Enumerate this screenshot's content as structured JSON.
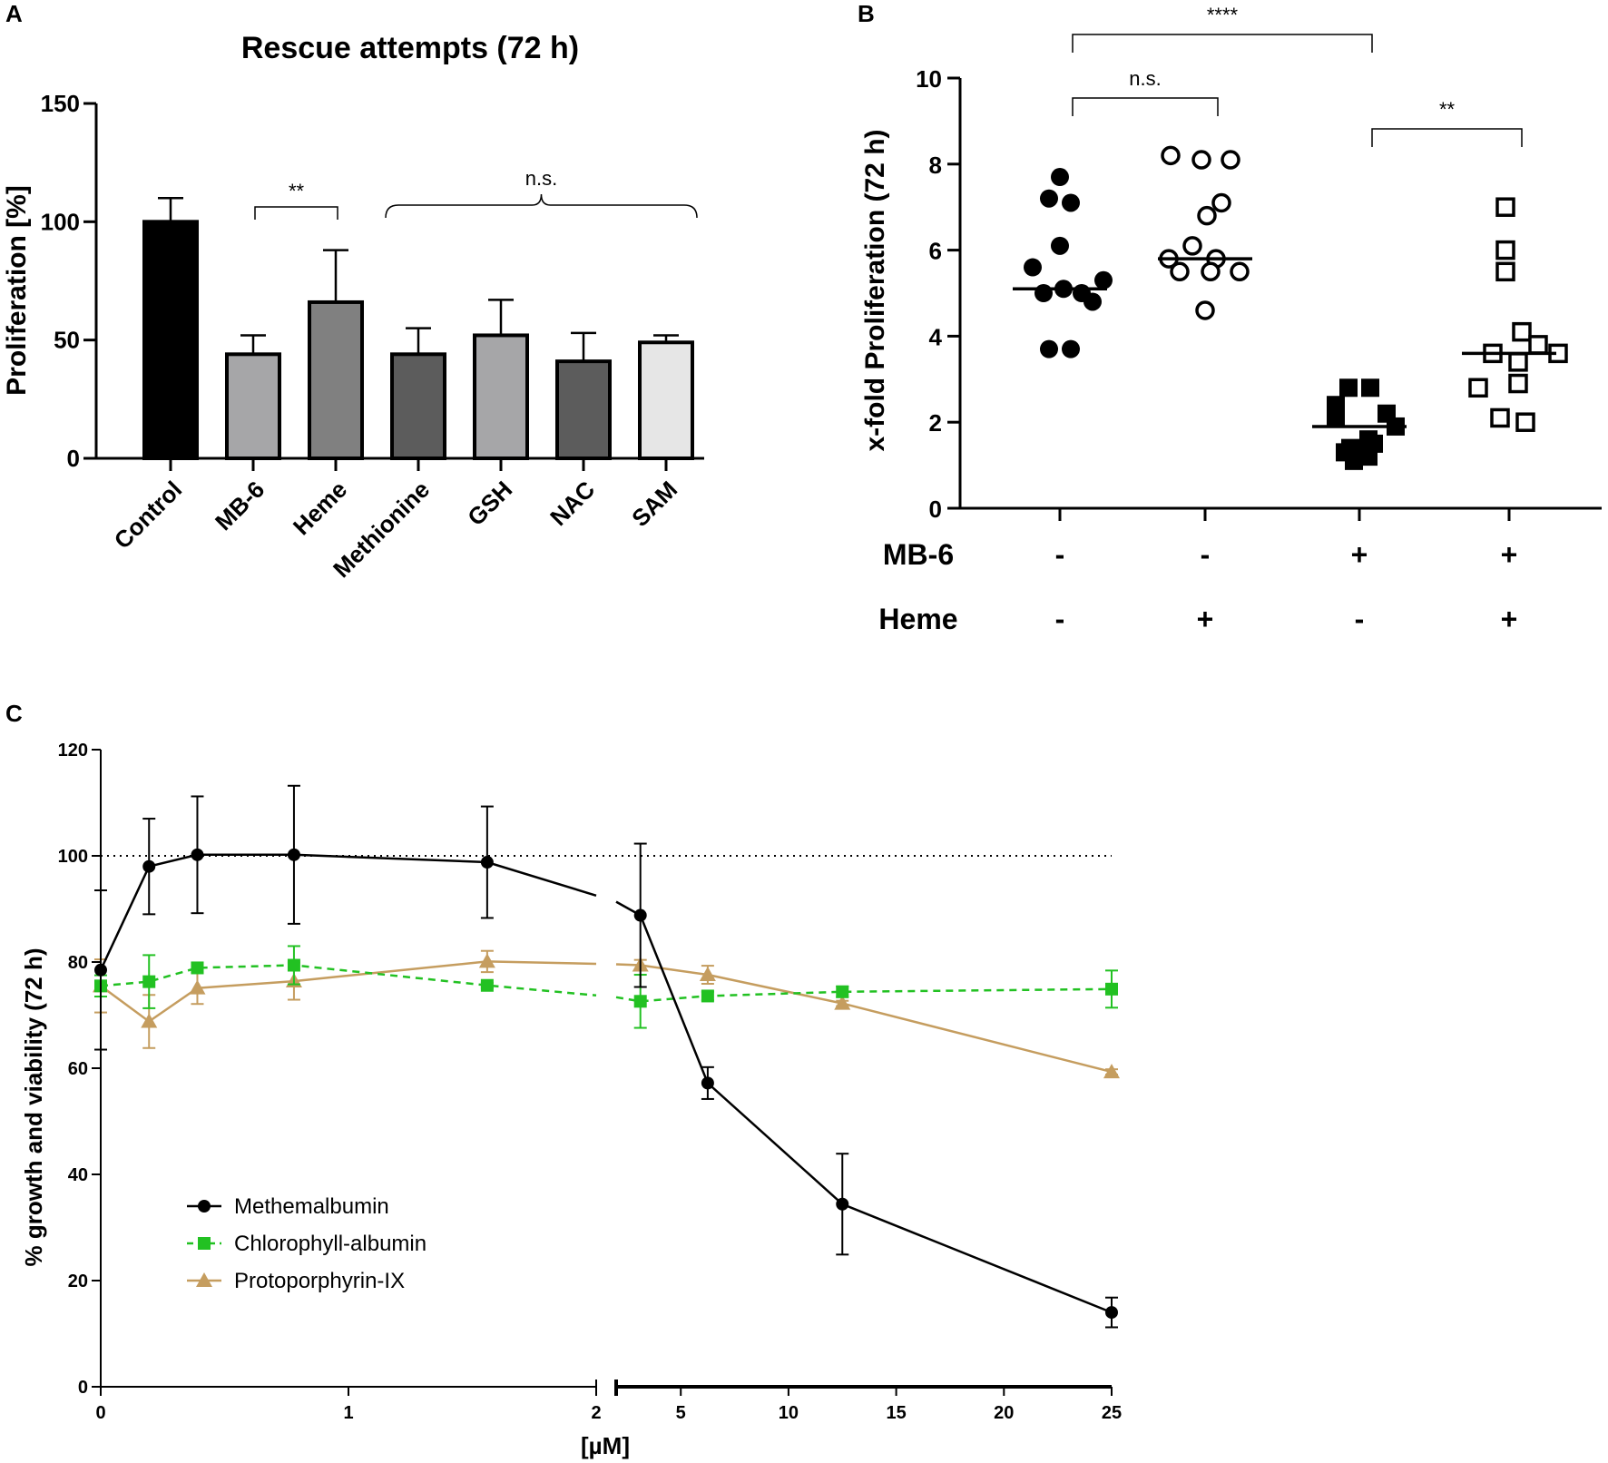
{
  "panels": {
    "A": "A",
    "B": "B",
    "C": "C"
  },
  "chart_data": [
    {
      "panel": "A",
      "type": "bar",
      "title": "Rescue attempts (72 h)",
      "xlabel": "",
      "ylabel": "Proliferation [%]",
      "ylim": [
        0,
        150
      ],
      "yticks": [
        "0",
        "50",
        "100",
        "150"
      ],
      "categories": [
        "Control",
        "MB-6",
        "Heme",
        "Methionine",
        "GSH",
        "NAC",
        "SAM"
      ],
      "values": [
        100,
        44,
        66,
        44,
        52,
        41,
        49
      ],
      "errors": [
        10,
        8,
        22,
        11,
        15,
        12,
        3
      ],
      "colors": [
        "#000000",
        "#a6a6a8",
        "#808080",
        "#5c5c5c",
        "#a6a6a8",
        "#5c5c5c",
        "#e6e6e6"
      ],
      "annotations": [
        {
          "text": "**",
          "from": "MB-6",
          "to": "Heme"
        },
        {
          "text": "n.s.",
          "from": "Methionine",
          "to": "SAM"
        }
      ]
    },
    {
      "panel": "B",
      "type": "scatter",
      "ylabel": "x-fold Proliferation (72 h)",
      "ylim": [
        0,
        10
      ],
      "yticks": [
        "0",
        "2",
        "4",
        "6",
        "8",
        "10"
      ],
      "groups": [
        {
          "marker": "filled-circle",
          "median": 5.1,
          "values": [
            7.7,
            7.2,
            7.1,
            6.1,
            5.6,
            5.0,
            5.1,
            5.0,
            4.8,
            5.3,
            3.7,
            3.7
          ]
        },
        {
          "marker": "open-circle",
          "median": 5.8,
          "values": [
            8.2,
            8.1,
            8.1,
            7.1,
            6.8,
            5.8,
            6.1,
            5.8,
            5.5,
            5.5,
            5.5,
            4.6
          ]
        },
        {
          "marker": "filled-square",
          "median": 1.9,
          "values": [
            2.8,
            2.8,
            2.4,
            2.2,
            2.1,
            1.9,
            1.6,
            1.4,
            1.5,
            1.3,
            1.2,
            1.1
          ]
        },
        {
          "marker": "open-square",
          "median": 3.6,
          "values": [
            7.0,
            6.0,
            5.5,
            4.1,
            3.8,
            3.6,
            3.6,
            3.4,
            2.8,
            2.9,
            2.1,
            2.0
          ]
        }
      ],
      "conditions": {
        "rows": [
          {
            "label": "MB-6",
            "values": [
              "-",
              "-",
              "+",
              "+"
            ]
          },
          {
            "label": "Heme",
            "values": [
              "-",
              "+",
              "-",
              "+"
            ]
          }
        ]
      },
      "annotations": [
        {
          "text": "****",
          "from": 0,
          "to": 2
        },
        {
          "text": "n.s.",
          "from": 0,
          "to": 1
        },
        {
          "text": "**",
          "from": 2,
          "to": 3
        }
      ]
    },
    {
      "panel": "C",
      "type": "line",
      "xlabel": "[µM]",
      "ylabel": "% growth and viability (72 h)",
      "ylim": [
        0,
        120
      ],
      "yticks": [
        "0",
        "20",
        "40",
        "60",
        "80",
        "100",
        "120"
      ],
      "xticks_left": [
        "0",
        "1",
        "2"
      ],
      "xticks_right": [
        "5",
        "10",
        "15",
        "20",
        "25"
      ],
      "reference_line": 100,
      "series": [
        {
          "name": "Methemalbumin",
          "color": "#000000",
          "marker": "circle",
          "dash": false,
          "x": [
            0,
            0.195,
            0.39,
            0.78,
            1.56,
            3.125,
            6.25,
            12.5,
            25
          ],
          "y": [
            78.5,
            98,
            100.2,
            100.2,
            98.8,
            88.8,
            57.2,
            34.4,
            14.0
          ],
          "err": [
            15,
            9,
            11,
            13,
            10.5,
            13.5,
            3,
            9.5,
            2.8
          ]
        },
        {
          "name": "Chlorophyll-albumin",
          "color": "#22c122",
          "marker": "square",
          "dash": true,
          "x": [
            0,
            0.195,
            0.39,
            0.78,
            1.56,
            3.125,
            6.25,
            12.5,
            25
          ],
          "y": [
            75.5,
            76.3,
            78.9,
            79.4,
            75.6,
            72.6,
            73.6,
            74.4,
            74.9
          ],
          "err": [
            2,
            5,
            1,
            3.6,
            0.5,
            5,
            0.8,
            1,
            3.5
          ]
        },
        {
          "name": "Protoporphyrin-IX",
          "color": "#c59d5f",
          "marker": "triangle",
          "dash": false,
          "x": [
            0,
            0.195,
            0.39,
            0.78,
            1.56,
            3.125,
            6.25,
            12.5,
            25
          ],
          "y": [
            75.5,
            68.8,
            75.1,
            76.4,
            80.1,
            79.4,
            77.6,
            72.2,
            59.3
          ],
          "err": [
            5,
            5,
            3,
            3.5,
            2,
            1,
            1.7,
            0.5,
            0.5
          ]
        }
      ]
    }
  ]
}
